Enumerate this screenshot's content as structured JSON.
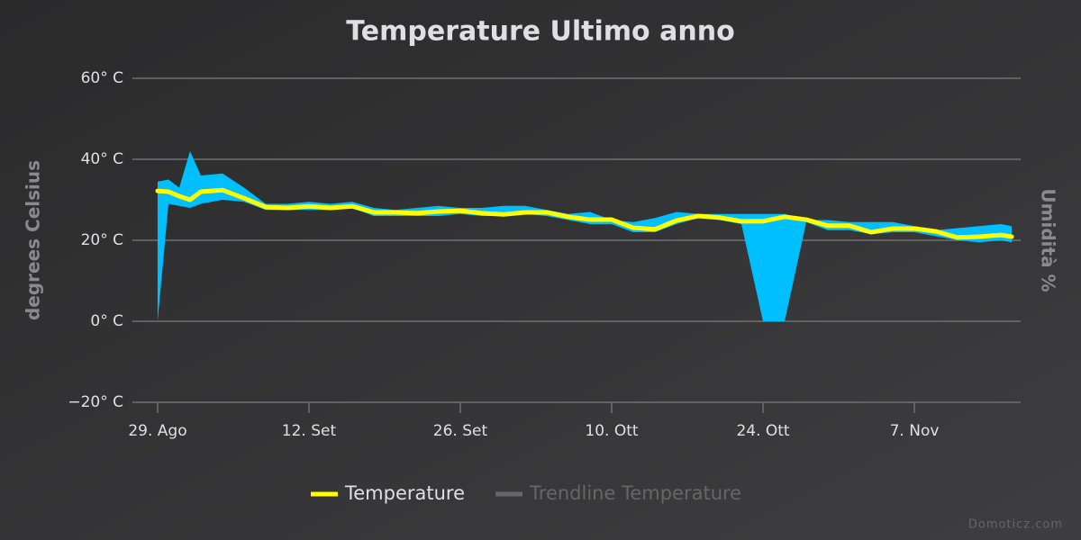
{
  "chart_data": {
    "type": "line",
    "title": "Temperature Ultimo anno",
    "y_label": "degrees Celsius",
    "y2_label": "Umidità %",
    "watermark": "Domoticz.com",
    "x": [
      0,
      1,
      2,
      3,
      4,
      6,
      8,
      10,
      12,
      14,
      16,
      18,
      20,
      22,
      24,
      26,
      28,
      30,
      32,
      34,
      36,
      38,
      40,
      42,
      44,
      46,
      48,
      50,
      52,
      54,
      56,
      58,
      60,
      62,
      64,
      66,
      68,
      70,
      72,
      74,
      76,
      78,
      79
    ],
    "xlim": [
      -2.33,
      79.83
    ],
    "xticks": [
      {
        "value": 0,
        "label": "29. Ago"
      },
      {
        "value": 14,
        "label": "12. Set"
      },
      {
        "value": 28,
        "label": "26. Set"
      },
      {
        "value": 42,
        "label": "10. Ott"
      },
      {
        "value": 56,
        "label": "24. Ott"
      },
      {
        "value": 70,
        "label": "7. Nov"
      }
    ],
    "ylim": [
      -20,
      60
    ],
    "yticks": [
      {
        "value": -20,
        "label": "−20° C"
      },
      {
        "value": 0,
        "label": "0° C"
      },
      {
        "value": 20,
        "label": "20° C"
      },
      {
        "value": 40,
        "label": "40° C"
      },
      {
        "value": 60,
        "label": "60° C"
      }
    ],
    "grid": true,
    "series": [
      {
        "name": "Temperature",
        "color": "#ffff00",
        "values": [
          32.2,
          32,
          30.9,
          30,
          32,
          32.4,
          30.4,
          28.2,
          28,
          28.4,
          28,
          28.4,
          26.9,
          26.9,
          26.7,
          27.1,
          27.3,
          26.7,
          26.4,
          26.9,
          26.9,
          25.8,
          25.1,
          25.1,
          23.1,
          22.7,
          24.9,
          26,
          25.6,
          24.7,
          24.7,
          25.8,
          25.1,
          23.6,
          23.6,
          22,
          22.9,
          22.9,
          22.2,
          20.7,
          20.9,
          21.3,
          20.9
        ]
      },
      {
        "name": "Trendline Temperature",
        "color": "#666666",
        "visible": false
      }
    ],
    "range": {
      "color": "#00bfff",
      "high": [
        34.5,
        35,
        33,
        42,
        36,
        36.5,
        33,
        29,
        29,
        29.5,
        29,
        29.5,
        28,
        27.5,
        28,
        28.5,
        28,
        28,
        28.5,
        28.5,
        27.5,
        26.5,
        27,
        25,
        24.5,
        25.5,
        27,
        26.5,
        26.5,
        26.5,
        26.5,
        26.5,
        25,
        25,
        24.5,
        24.5,
        24.5,
        23.5,
        22.5,
        23,
        23.5,
        24,
        23.5
      ],
      "low": [
        0,
        29,
        28.5,
        28,
        29,
        30,
        29.5,
        27.5,
        27.5,
        27.5,
        27.5,
        28,
        26,
        26,
        26,
        26,
        26.5,
        26,
        26,
        26.5,
        26,
        25,
        24,
        24,
        22,
        22,
        24,
        25.5,
        25,
        24,
        0,
        0,
        24.5,
        22.5,
        22.5,
        21.5,
        22,
        22,
        21,
        20,
        19.5,
        20,
        19.5
      ]
    }
  }
}
